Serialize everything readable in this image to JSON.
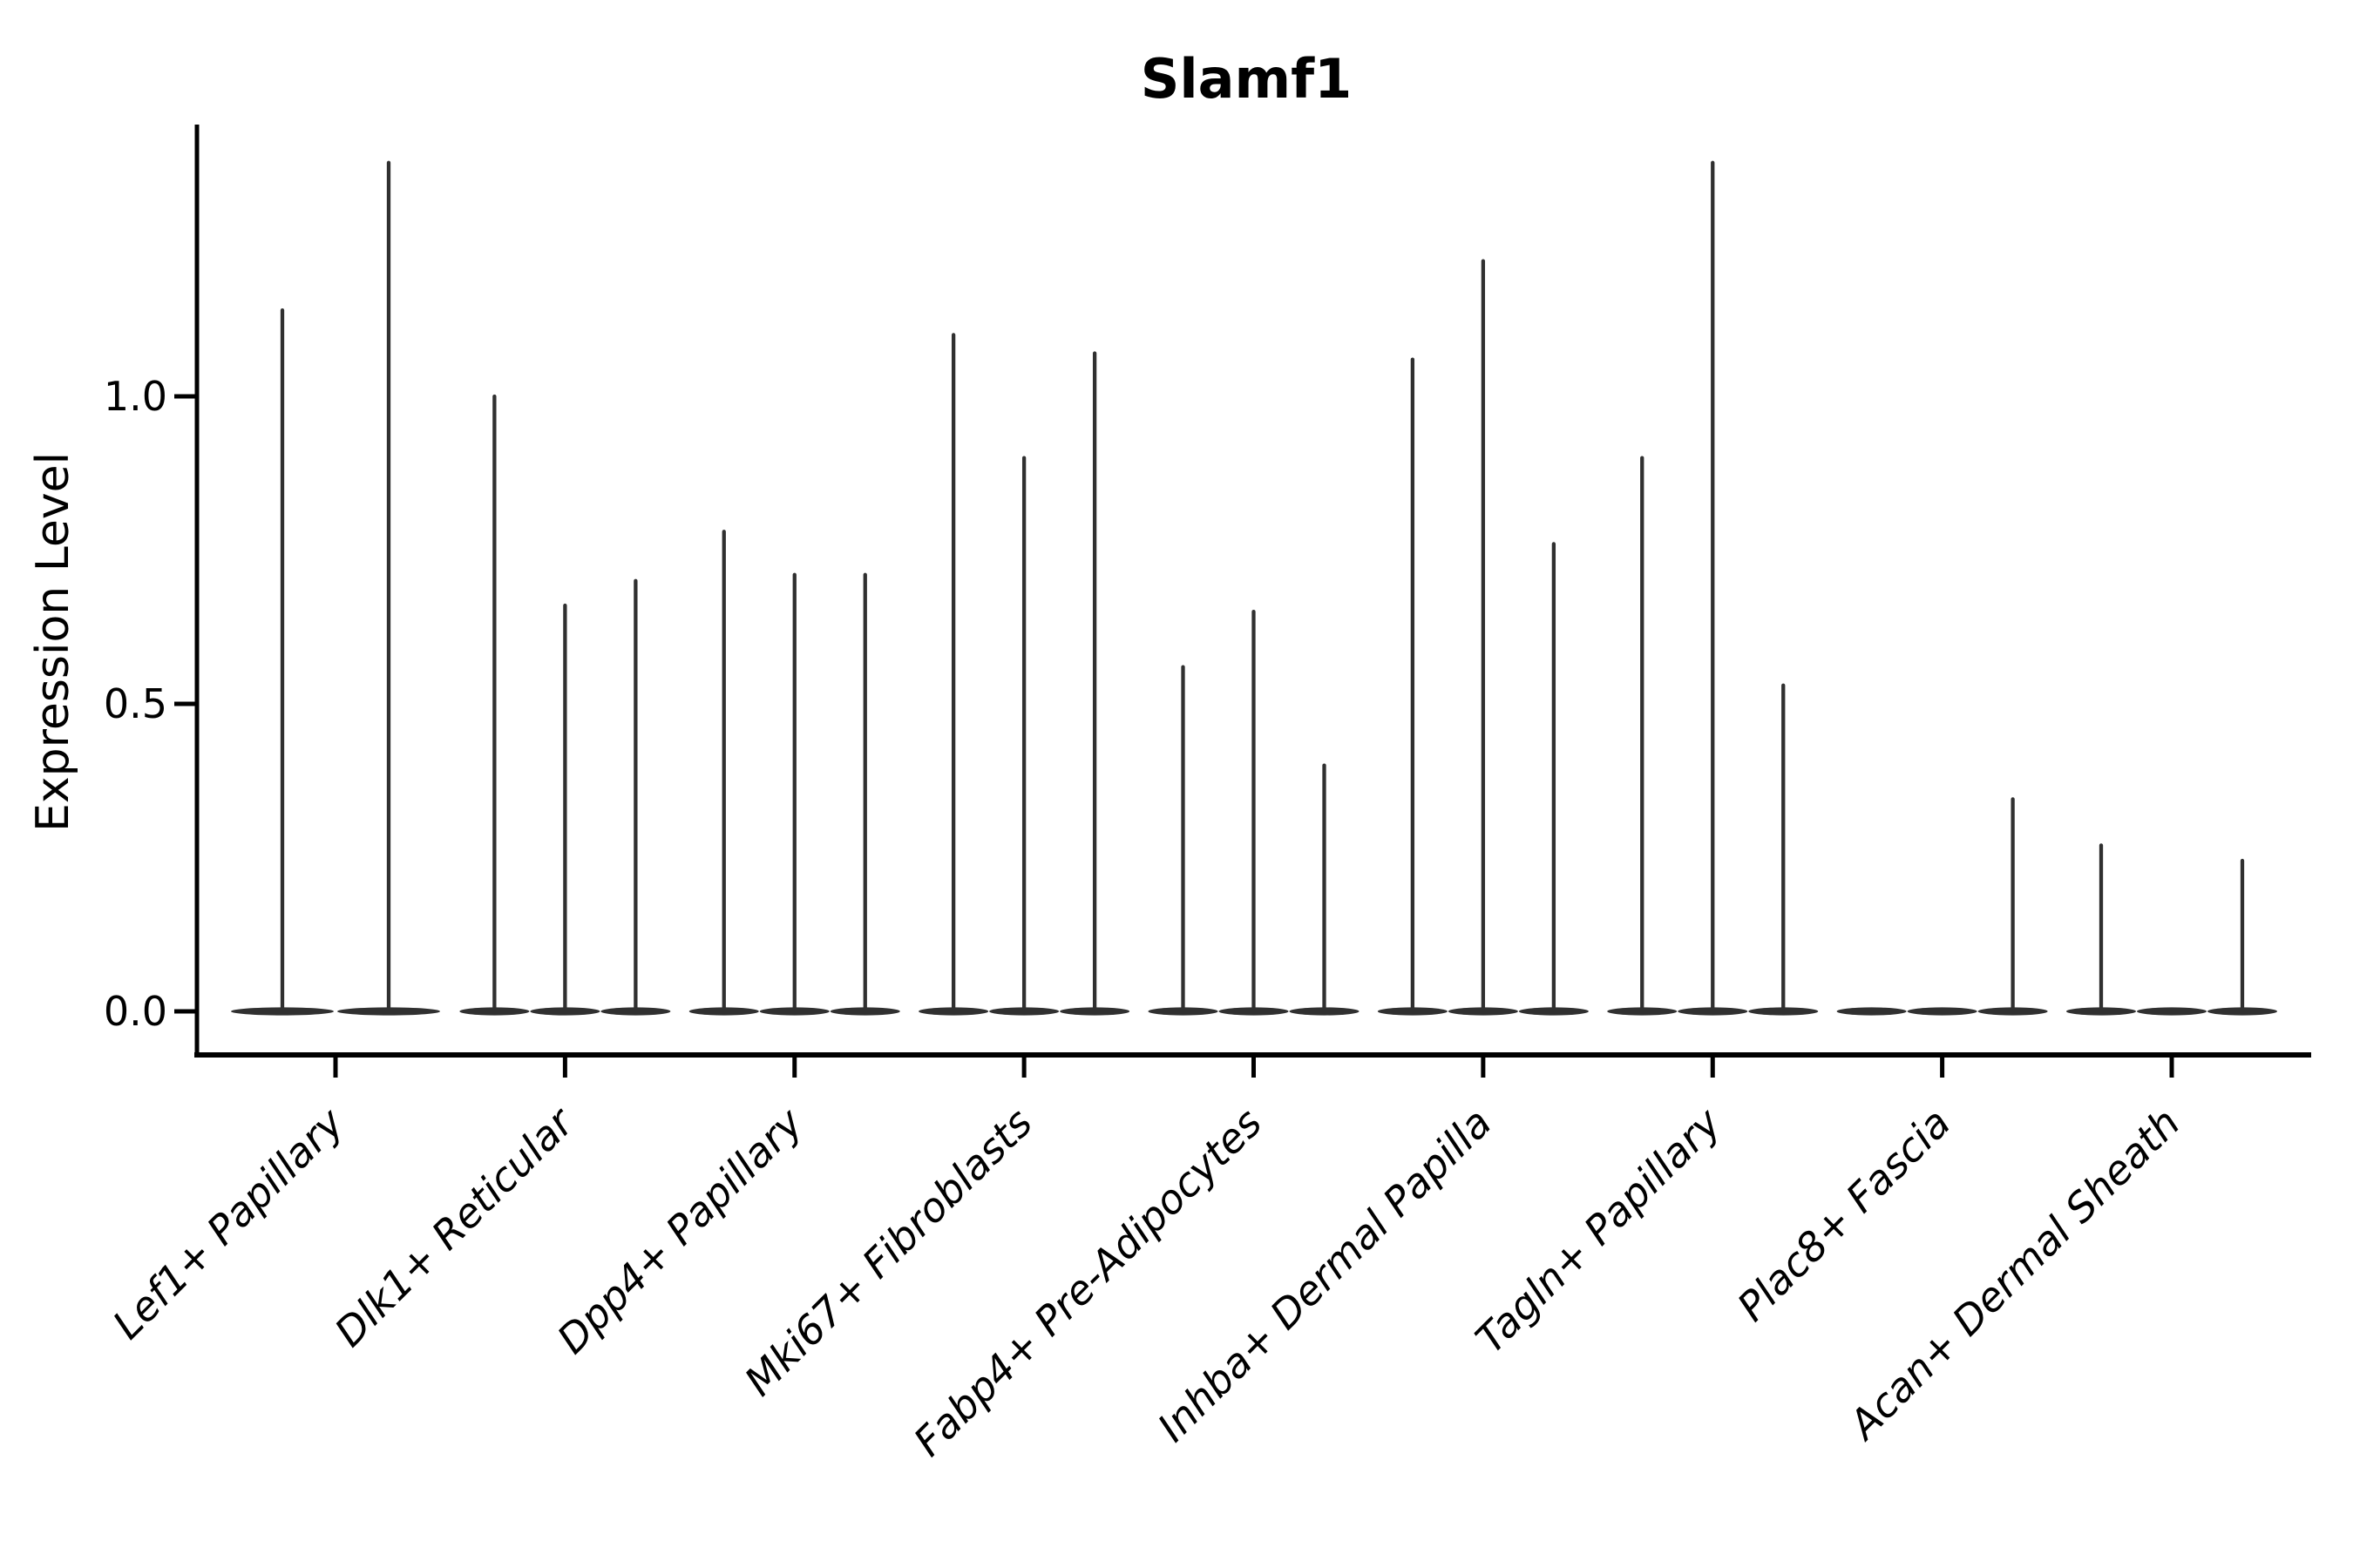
{
  "chart_data": {
    "type": "violin",
    "title": "Slamf1",
    "xlabel": "",
    "ylabel": "Expression Level",
    "ylim": [
      0,
      1.44
    ],
    "grid": false,
    "legend": "none",
    "ytick_values": [
      0.0,
      0.5,
      1.0
    ],
    "ytick_labels": [
      "0.0",
      "0.5",
      "1.0"
    ],
    "categories": [
      "Lef1+ Papillary",
      "Dlk1+ Reticular",
      "Dpp4+ Papillary",
      "Mki67+ Fibroblasts",
      "Fabp4+ Pre-Adipocytes",
      "Inhba+ Dermal Papilla",
      "Tagln+ Papillary",
      "Plac8+ Fascia",
      "Acan+ Dermal Sheath"
    ],
    "groups": [
      {
        "label": "Lef1+ Papillary",
        "violins": [
          {
            "slot": "left",
            "max": 1.14
          },
          {
            "slot": "right",
            "max": 1.38
          }
        ]
      },
      {
        "label": "Dlk1+ Reticular",
        "violins": [
          {
            "slot": "left",
            "max": 1.0
          },
          {
            "slot": "center",
            "max": 0.66
          },
          {
            "slot": "right",
            "max": 0.7
          }
        ]
      },
      {
        "label": "Dpp4+ Papillary",
        "violins": [
          {
            "slot": "left",
            "max": 0.78
          },
          {
            "slot": "center",
            "max": 0.71
          },
          {
            "slot": "right",
            "max": 0.71
          }
        ]
      },
      {
        "label": "Mki67+ Fibroblasts",
        "violins": [
          {
            "slot": "left",
            "max": 1.1
          },
          {
            "slot": "center",
            "max": 0.9
          },
          {
            "slot": "right",
            "max": 1.07
          }
        ]
      },
      {
        "label": "Fabp4+ Pre-Adipocytes",
        "violins": [
          {
            "slot": "left",
            "max": 0.56
          },
          {
            "slot": "center",
            "max": 0.65
          },
          {
            "slot": "right",
            "max": 0.4
          }
        ]
      },
      {
        "label": "Inhba+ Dermal Papilla",
        "violins": [
          {
            "slot": "left",
            "max": 1.06
          },
          {
            "slot": "center",
            "max": 1.22
          },
          {
            "slot": "right",
            "max": 0.76
          }
        ]
      },
      {
        "label": "Tagln+ Papillary",
        "violins": [
          {
            "slot": "left",
            "max": 0.9
          },
          {
            "slot": "center",
            "max": 1.38
          },
          {
            "slot": "right",
            "max": 0.53
          }
        ]
      },
      {
        "label": "Plac8+ Fascia",
        "violins": [
          {
            "slot": "left",
            "max": 0.0
          },
          {
            "slot": "center",
            "max": 0.0
          },
          {
            "slot": "right",
            "max": 0.345
          }
        ]
      },
      {
        "label": "Acan+ Dermal Sheath",
        "violins": [
          {
            "slot": "left",
            "max": 0.27
          },
          {
            "slot": "center",
            "max": 0.0
          },
          {
            "slot": "right",
            "max": 0.245
          }
        ]
      }
    ],
    "colors": {
      "background": "#ffffff",
      "axis": "#000000",
      "text": "#000000",
      "violin": "#303030"
    }
  }
}
